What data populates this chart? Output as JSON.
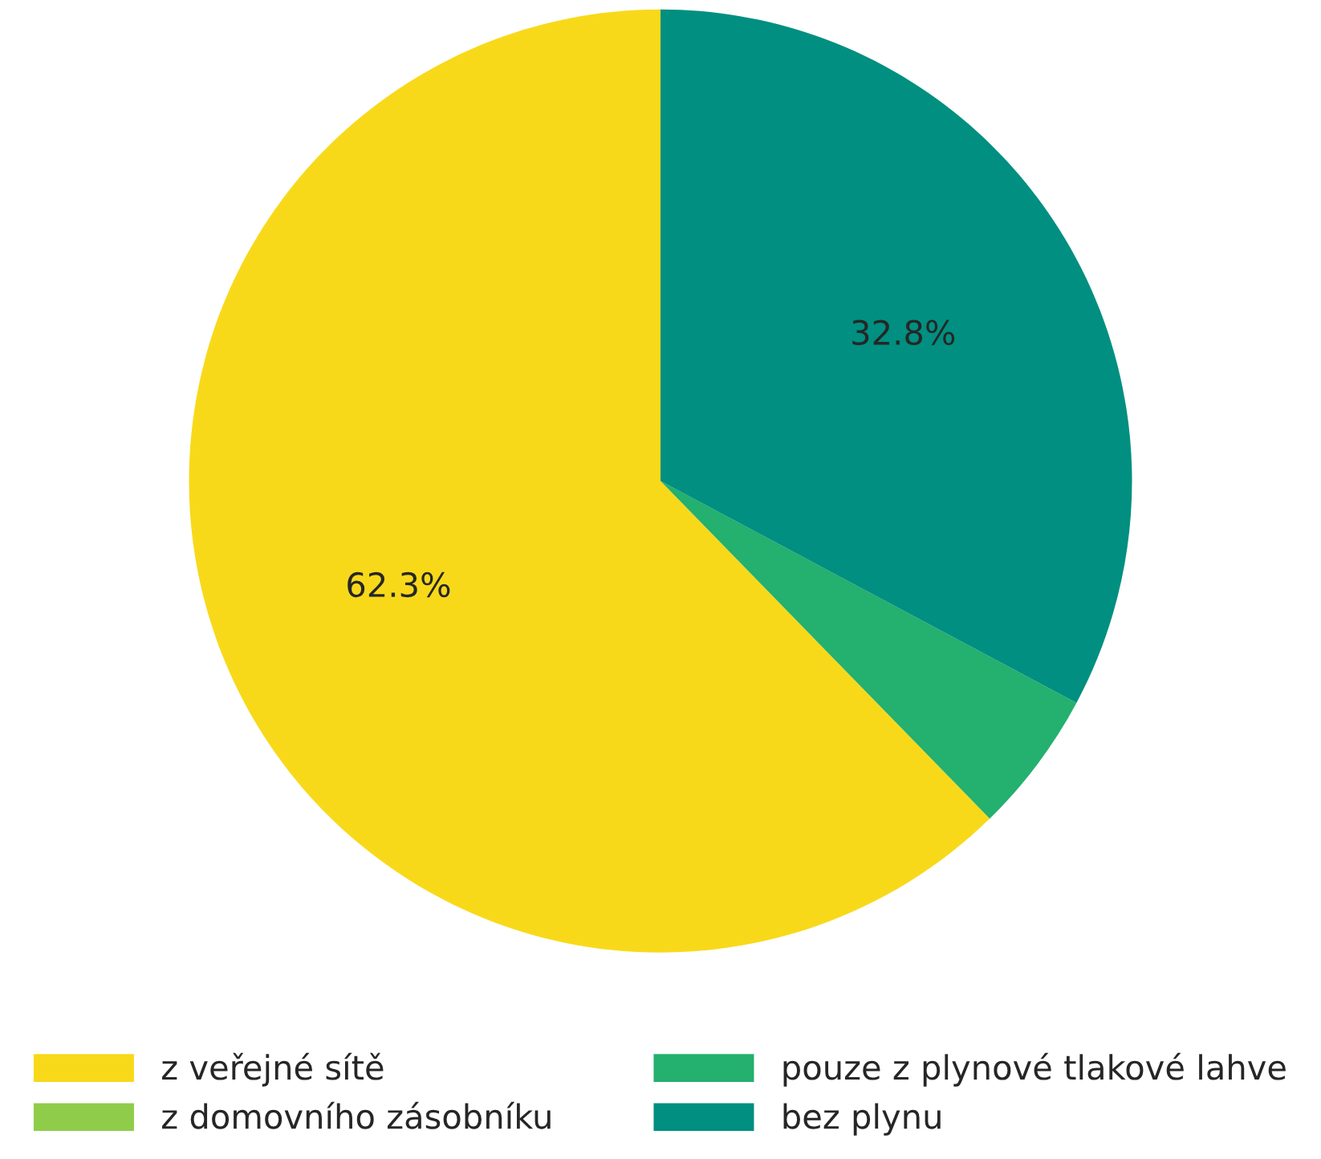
{
  "chart_data": {
    "type": "pie",
    "categories": [
      "z veřejné sítě",
      "z domovního zásobníku",
      "pouze z plynové tlakové lahve",
      "bez plynu"
    ],
    "values": [
      62.3,
      0,
      4.9,
      32.8
    ],
    "colors": [
      "#f8d91a",
      "#8fcc4a",
      "#24b06e",
      "#008f80"
    ],
    "value_labels": [
      "62.3%",
      null,
      null,
      "32.8%"
    ],
    "legend": "bottom"
  }
}
